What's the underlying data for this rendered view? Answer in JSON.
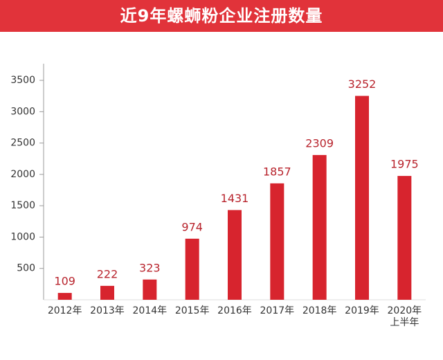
{
  "chart_data": {
    "type": "bar",
    "title": "近9年螺蛳粉企业注册数量",
    "categories": [
      "2012年",
      "2013年",
      "2014年",
      "2015年",
      "2016年",
      "2017年",
      "2018年",
      "2019年",
      "2020年\n上半年"
    ],
    "values": [
      109,
      222,
      323,
      974,
      1431,
      1857,
      2309,
      3252,
      1975
    ],
    "color": "#d7242e",
    "ylim": [
      0,
      3600
    ],
    "yticks": [
      500,
      1000,
      1500,
      2000,
      2500,
      3000,
      3500
    ],
    "grid": false
  }
}
